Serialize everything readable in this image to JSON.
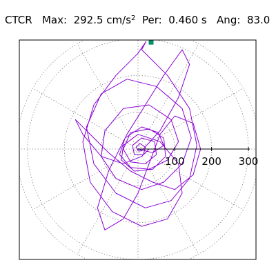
{
  "header": {
    "station": "CTCR",
    "max_label": "Max:",
    "max_value": "292.5 cm/s",
    "max_exp": "2",
    "per_label": "Per:",
    "per_value": "0.460 s",
    "ang_label": "Ang:",
    "ang_value": "83.0"
  },
  "chart_data": {
    "type": "polar-scatter",
    "title": "CTCR  Max: 292.5 cm/s2  Per: 0.460 s  Ang: 83.0",
    "radial_max": 330,
    "radial_ticks": [
      100,
      200,
      300
    ],
    "radial_tick_labels": [
      "100",
      "200",
      "300"
    ],
    "angular_grid_deg": 30,
    "grid": true,
    "peak_marker": {
      "r": 292.5,
      "ang_deg": 83.0
    },
    "trace": {
      "description": "Horizontal particle-motion orbit traced in acceleration space",
      "points": [
        [
          0,
          0
        ],
        [
          40,
          -10
        ],
        [
          70,
          10
        ],
        [
          55,
          45
        ],
        [
          10,
          60
        ],
        [
          -35,
          30
        ],
        [
          -50,
          -15
        ],
        [
          -20,
          -50
        ],
        [
          30,
          -55
        ],
        [
          80,
          -30
        ],
        [
          110,
          20
        ],
        [
          90,
          80
        ],
        [
          30,
          120
        ],
        [
          -40,
          110
        ],
        [
          -90,
          50
        ],
        [
          -100,
          -20
        ],
        [
          -60,
          -80
        ],
        [
          10,
          -110
        ],
        [
          70,
          -90
        ],
        [
          120,
          -40
        ],
        [
          145,
          30
        ],
        [
          120,
          110
        ],
        [
          50,
          170
        ],
        [
          -30,
          190
        ],
        [
          -100,
          150
        ],
        [
          -140,
          60
        ],
        [
          -120,
          -40
        ],
        [
          -60,
          -120
        ],
        [
          20,
          -160
        ],
        [
          90,
          -140
        ],
        [
          140,
          -80
        ],
        [
          160,
          10
        ],
        [
          140,
          110
        ],
        [
          80,
          200
        ],
        [
          10,
          270
        ],
        [
          22,
          292.5
        ],
        [
          0,
          260
        ],
        [
          -60,
          200
        ],
        [
          -120,
          120
        ],
        [
          -150,
          20
        ],
        [
          -130,
          -90
        ],
        [
          -70,
          -170
        ],
        [
          10,
          -210
        ],
        [
          80,
          -190
        ],
        [
          120,
          -120
        ],
        [
          110,
          -40
        ],
        [
          60,
          20
        ],
        [
          0,
          40
        ],
        [
          -40,
          10
        ],
        [
          -45,
          -30
        ],
        [
          -10,
          -60
        ],
        [
          40,
          -55
        ],
        [
          75,
          -20
        ],
        [
          70,
          30
        ],
        [
          30,
          55
        ],
        [
          -20,
          45
        ],
        [
          -40,
          0
        ],
        [
          -20,
          -35
        ],
        [
          20,
          -40
        ],
        [
          50,
          -15
        ],
        [
          45,
          20
        ],
        [
          10,
          30
        ],
        [
          -15,
          10
        ],
        [
          -10,
          -15
        ],
        [
          15,
          -15
        ],
        [
          20,
          5
        ],
        [
          5,
          15
        ],
        [
          -5,
          5
        ],
        [
          0,
          -5
        ],
        [
          10,
          -5
        ],
        [
          60,
          50
        ],
        [
          110,
          140
        ],
        [
          140,
          230
        ],
        [
          120,
          270
        ],
        [
          70,
          200
        ],
        [
          20,
          120
        ],
        [
          -30,
          40
        ],
        [
          -80,
          -60
        ],
        [
          -110,
          -160
        ],
        [
          -90,
          -220
        ],
        [
          -40,
          -190
        ],
        [
          0,
          -120
        ],
        [
          30,
          -40
        ],
        [
          60,
          40
        ],
        [
          100,
          90
        ],
        [
          150,
          70
        ],
        [
          170,
          0
        ],
        [
          150,
          -70
        ],
        [
          100,
          -110
        ],
        [
          40,
          -90
        ],
        [
          -20,
          -60
        ],
        [
          -80,
          -10
        ],
        [
          -140,
          50
        ],
        [
          -170,
          80
        ],
        [
          -150,
          40
        ],
        [
          -100,
          -20
        ],
        [
          -40,
          -40
        ],
        [
          10,
          -20
        ],
        [
          30,
          0
        ],
        [
          0,
          0
        ]
      ]
    }
  }
}
